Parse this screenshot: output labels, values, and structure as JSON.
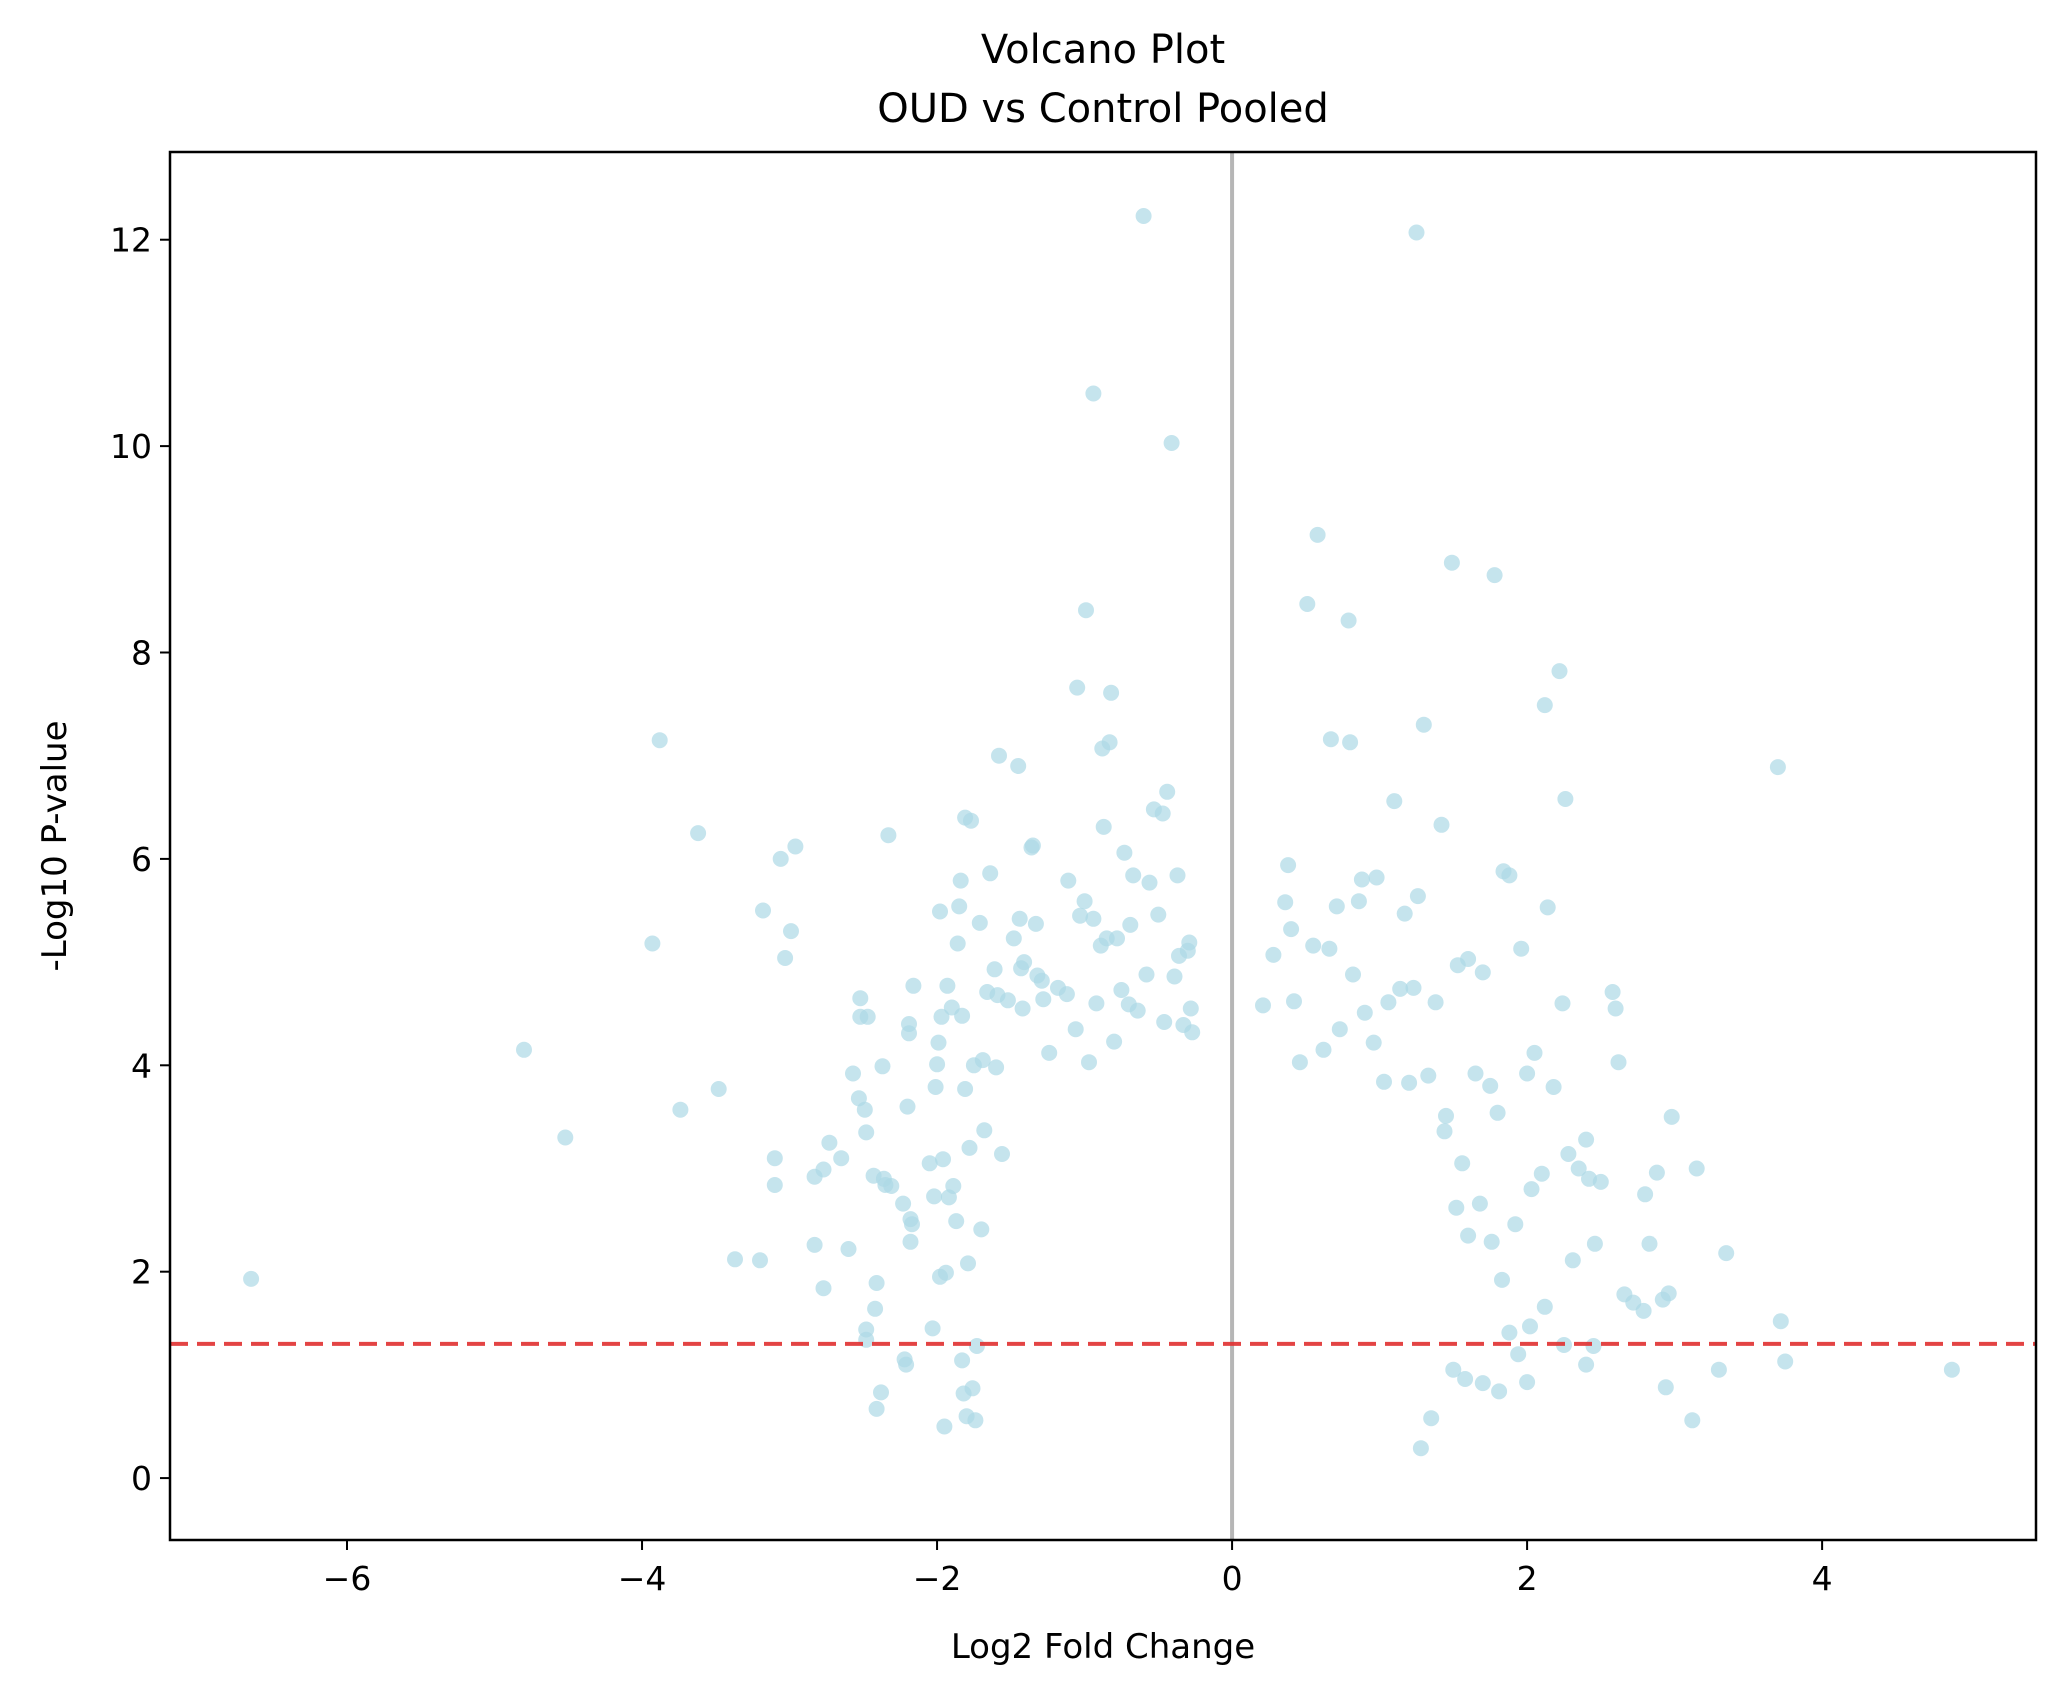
{
  "chart_data": {
    "type": "scatter",
    "title": "Volcano Plot",
    "subtitle": "OUD vs Control Pooled",
    "xlabel": "Log2 Fold Change",
    "ylabel": "-Log10 P-value",
    "xlim": [
      -7.2,
      5.45
    ],
    "ylim": [
      -0.6,
      12.85
    ],
    "xticks": [
      -6,
      -4,
      -2,
      0,
      2,
      4
    ],
    "yticks": [
      0,
      2,
      4,
      6,
      8,
      10,
      12
    ],
    "xtick_labels": [
      "−6",
      "−4",
      "−2",
      "0",
      "2",
      "4"
    ],
    "ytick_labels": [
      "0",
      "2",
      "4",
      "6",
      "8",
      "10",
      "12"
    ],
    "grid": false,
    "legend": "none",
    "point_color": "#add8e6",
    "point_opacity": 0.7,
    "reference_lines": {
      "vertical": {
        "x": 0,
        "color": "#a9a9a9",
        "style": "solid"
      },
      "horizontal": {
        "y": 1.3,
        "color": "#e03030",
        "style": "dashed"
      }
    },
    "series": [
      {
        "points": [
          [
            -6.65,
            1.93
          ],
          [
            -4.8,
            4.15
          ],
          [
            -4.52,
            3.3
          ],
          [
            -3.93,
            5.18
          ],
          [
            -3.88,
            7.15
          ],
          [
            -3.74,
            3.57
          ],
          [
            -3.62,
            6.25
          ],
          [
            -3.48,
            3.77
          ],
          [
            -3.37,
            2.12
          ],
          [
            -3.2,
            2.11
          ],
          [
            -3.18,
            5.5
          ],
          [
            -3.1,
            3.1
          ],
          [
            -3.1,
            2.84
          ],
          [
            -3.06,
            6.0
          ],
          [
            -3.03,
            5.04
          ],
          [
            -2.99,
            5.3
          ],
          [
            -2.96,
            6.12
          ],
          [
            -2.83,
            2.26
          ],
          [
            -2.83,
            2.92
          ],
          [
            -2.77,
            2.99
          ],
          [
            -2.77,
            1.84
          ],
          [
            -2.73,
            3.25
          ],
          [
            -2.65,
            3.1
          ],
          [
            -2.6,
            2.22
          ],
          [
            -2.57,
            3.92
          ],
          [
            -2.53,
            3.68
          ],
          [
            -2.52,
            4.65
          ],
          [
            -2.52,
            4.47
          ],
          [
            -2.49,
            3.57
          ],
          [
            -2.48,
            3.35
          ],
          [
            -2.48,
            1.44
          ],
          [
            -2.48,
            1.34
          ],
          [
            -2.47,
            4.47
          ],
          [
            -2.43,
            2.93
          ],
          [
            -2.42,
            1.64
          ],
          [
            -2.41,
            1.89
          ],
          [
            -2.41,
            0.67
          ],
          [
            -2.38,
            0.83
          ],
          [
            -2.37,
            3.99
          ],
          [
            -2.36,
            2.9
          ],
          [
            -2.35,
            2.84
          ],
          [
            -2.33,
            6.23
          ],
          [
            -2.31,
            2.83
          ],
          [
            -2.23,
            2.66
          ],
          [
            -2.22,
            1.15
          ],
          [
            -2.21,
            1.1
          ],
          [
            -2.2,
            3.6
          ],
          [
            -2.19,
            4.31
          ],
          [
            -2.19,
            4.4
          ],
          [
            -2.18,
            2.51
          ],
          [
            -2.18,
            2.29
          ],
          [
            -2.17,
            2.46
          ],
          [
            -2.16,
            4.77
          ],
          [
            -2.05,
            3.05
          ],
          [
            -2.03,
            1.45
          ],
          [
            -2.02,
            2.73
          ],
          [
            -2.01,
            3.79
          ],
          [
            -2.0,
            4.01
          ],
          [
            -1.99,
            4.22
          ],
          [
            -1.98,
            5.49
          ],
          [
            -1.98,
            1.95
          ],
          [
            -1.97,
            4.47
          ],
          [
            -1.96,
            3.09
          ],
          [
            -1.95,
            0.5
          ],
          [
            -1.94,
            1.99
          ],
          [
            -1.93,
            4.77
          ],
          [
            -1.92,
            2.72
          ],
          [
            -1.9,
            4.56
          ],
          [
            -1.89,
            2.83
          ],
          [
            -1.87,
            2.49
          ],
          [
            -1.86,
            5.18
          ],
          [
            -1.85,
            5.54
          ],
          [
            -1.84,
            5.79
          ],
          [
            -1.83,
            4.48
          ],
          [
            -1.83,
            1.14
          ],
          [
            -1.82,
            0.82
          ],
          [
            -1.81,
            6.4
          ],
          [
            -1.81,
            3.77
          ],
          [
            -1.8,
            0.6
          ],
          [
            -1.79,
            2.08
          ],
          [
            -1.78,
            3.2
          ],
          [
            -1.77,
            6.37
          ],
          [
            -1.76,
            0.87
          ],
          [
            -1.75,
            4.0
          ],
          [
            -1.74,
            0.56
          ],
          [
            -1.73,
            1.28
          ],
          [
            -1.71,
            5.38
          ],
          [
            -1.7,
            2.41
          ],
          [
            -1.69,
            4.05
          ],
          [
            -1.68,
            3.37
          ],
          [
            -1.66,
            4.71
          ],
          [
            -1.64,
            5.86
          ],
          [
            -1.61,
            4.93
          ],
          [
            -1.6,
            3.98
          ],
          [
            -1.59,
            4.68
          ],
          [
            -1.58,
            7.0
          ],
          [
            -1.56,
            3.14
          ],
          [
            -1.52,
            4.63
          ],
          [
            -1.48,
            5.23
          ],
          [
            -1.45,
            6.9
          ],
          [
            -1.44,
            5.42
          ],
          [
            -1.43,
            4.94
          ],
          [
            -1.42,
            4.55
          ],
          [
            -1.41,
            5.0
          ],
          [
            -1.36,
            6.11
          ],
          [
            -1.35,
            6.13
          ],
          [
            -1.33,
            5.37
          ],
          [
            -1.32,
            4.87
          ],
          [
            -1.29,
            4.82
          ],
          [
            -1.28,
            4.64
          ],
          [
            -1.24,
            4.12
          ],
          [
            -1.18,
            4.75
          ],
          [
            -1.12,
            4.69
          ],
          [
            -1.11,
            5.79
          ],
          [
            -1.06,
            4.35
          ],
          [
            -1.05,
            7.66
          ],
          [
            -1.03,
            5.45
          ],
          [
            -1.0,
            5.59
          ],
          [
            -0.99,
            8.41
          ],
          [
            -0.97,
            4.03
          ],
          [
            -0.94,
            5.42
          ],
          [
            -0.94,
            10.51
          ],
          [
            -0.92,
            4.6
          ],
          [
            -0.89,
            5.16
          ],
          [
            -0.88,
            7.07
          ],
          [
            -0.87,
            6.31
          ],
          [
            -0.85,
            5.23
          ],
          [
            -0.83,
            7.13
          ],
          [
            -0.82,
            7.61
          ],
          [
            -0.8,
            4.23
          ],
          [
            -0.78,
            5.23
          ],
          [
            -0.75,
            4.73
          ],
          [
            -0.73,
            6.06
          ],
          [
            -0.7,
            4.59
          ],
          [
            -0.69,
            5.36
          ],
          [
            -0.67,
            5.84
          ],
          [
            -0.64,
            4.53
          ],
          [
            -0.6,
            12.23
          ],
          [
            -0.58,
            4.88
          ],
          [
            -0.56,
            5.77
          ],
          [
            -0.53,
            6.48
          ],
          [
            -0.5,
            5.46
          ],
          [
            -0.47,
            6.44
          ],
          [
            -0.46,
            4.42
          ],
          [
            -0.44,
            6.65
          ],
          [
            -0.41,
            10.03
          ],
          [
            -0.39,
            4.86
          ],
          [
            -0.37,
            5.84
          ],
          [
            -0.36,
            5.06
          ],
          [
            -0.33,
            4.39
          ],
          [
            -0.3,
            5.11
          ],
          [
            -0.29,
            5.19
          ],
          [
            -0.28,
            4.55
          ],
          [
            -0.27,
            4.32
          ],
          [
            0.21,
            4.58
          ],
          [
            0.28,
            5.07
          ],
          [
            0.36,
            5.58
          ],
          [
            0.38,
            5.94
          ],
          [
            0.4,
            5.32
          ],
          [
            0.42,
            4.62
          ],
          [
            0.46,
            4.03
          ],
          [
            0.51,
            8.47
          ],
          [
            0.55,
            5.16
          ],
          [
            0.58,
            9.14
          ],
          [
            0.62,
            4.15
          ],
          [
            0.66,
            5.13
          ],
          [
            0.67,
            7.16
          ],
          [
            0.71,
            5.54
          ],
          [
            0.73,
            4.35
          ],
          [
            0.79,
            8.31
          ],
          [
            0.8,
            7.13
          ],
          [
            0.82,
            4.88
          ],
          [
            0.86,
            5.59
          ],
          [
            0.88,
            5.8
          ],
          [
            0.9,
            4.51
          ],
          [
            0.96,
            4.22
          ],
          [
            0.98,
            5.82
          ],
          [
            1.03,
            3.84
          ],
          [
            1.06,
            4.61
          ],
          [
            1.1,
            6.56
          ],
          [
            1.14,
            4.74
          ],
          [
            1.17,
            5.47
          ],
          [
            1.2,
            3.83
          ],
          [
            1.23,
            4.75
          ],
          [
            1.25,
            12.07
          ],
          [
            1.26,
            5.64
          ],
          [
            1.3,
            7.3
          ],
          [
            1.33,
            3.9
          ],
          [
            1.38,
            4.61
          ],
          [
            1.42,
            6.33
          ],
          [
            1.45,
            3.51
          ],
          [
            1.49,
            8.87
          ],
          [
            1.53,
            4.97
          ],
          [
            1.56,
            3.05
          ],
          [
            1.6,
            5.03
          ],
          [
            1.65,
            3.92
          ],
          [
            1.7,
            4.9
          ],
          [
            1.75,
            3.8
          ],
          [
            1.78,
            8.75
          ],
          [
            1.8,
            3.54
          ],
          [
            1.84,
            5.88
          ],
          [
            1.88,
            5.84
          ],
          [
            1.92,
            2.46
          ],
          [
            1.96,
            5.13
          ],
          [
            2.0,
            3.92
          ],
          [
            2.03,
            2.8
          ],
          [
            2.05,
            4.12
          ],
          [
            2.1,
            2.95
          ],
          [
            2.12,
            7.49
          ],
          [
            2.14,
            5.53
          ],
          [
            2.18,
            3.79
          ],
          [
            2.22,
            7.82
          ],
          [
            2.24,
            4.6
          ],
          [
            2.26,
            6.58
          ],
          [
            2.28,
            3.14
          ],
          [
            2.31,
            2.11
          ],
          [
            2.35,
            3.0
          ],
          [
            2.4,
            3.28
          ],
          [
            2.42,
            2.9
          ],
          [
            2.46,
            2.27
          ],
          [
            2.5,
            2.87
          ],
          [
            2.58,
            4.71
          ],
          [
            2.6,
            4.55
          ],
          [
            2.62,
            4.03
          ],
          [
            2.66,
            1.78
          ],
          [
            2.72,
            1.7
          ],
          [
            2.79,
            1.62
          ],
          [
            2.8,
            2.75
          ],
          [
            2.83,
            2.27
          ],
          [
            2.88,
            2.96
          ],
          [
            2.92,
            1.73
          ],
          [
            2.94,
            0.88
          ],
          [
            2.96,
            1.79
          ],
          [
            2.98,
            3.5
          ],
          [
            3.12,
            0.56
          ],
          [
            3.15,
            3.0
          ],
          [
            3.3,
            1.05
          ],
          [
            3.35,
            2.18
          ],
          [
            3.7,
            6.89
          ],
          [
            3.72,
            1.52
          ],
          [
            3.75,
            1.13
          ],
          [
            4.88,
            1.05
          ],
          [
            1.44,
            3.36
          ],
          [
            1.52,
            2.62
          ],
          [
            1.6,
            2.35
          ],
          [
            1.68,
            2.66
          ],
          [
            1.76,
            2.29
          ],
          [
            1.83,
            1.92
          ],
          [
            1.88,
            1.41
          ],
          [
            1.94,
            1.2
          ],
          [
            2.0,
            0.93
          ],
          [
            2.12,
            1.66
          ],
          [
            2.25,
            1.29
          ],
          [
            2.4,
            1.1
          ],
          [
            2.45,
            1.28
          ],
          [
            2.02,
            1.47
          ],
          [
            1.7,
            0.92
          ],
          [
            1.81,
            0.84
          ],
          [
            1.58,
            0.96
          ],
          [
            1.5,
            1.05
          ],
          [
            1.35,
            0.58
          ],
          [
            1.28,
            0.29
          ]
        ]
      }
    ]
  }
}
